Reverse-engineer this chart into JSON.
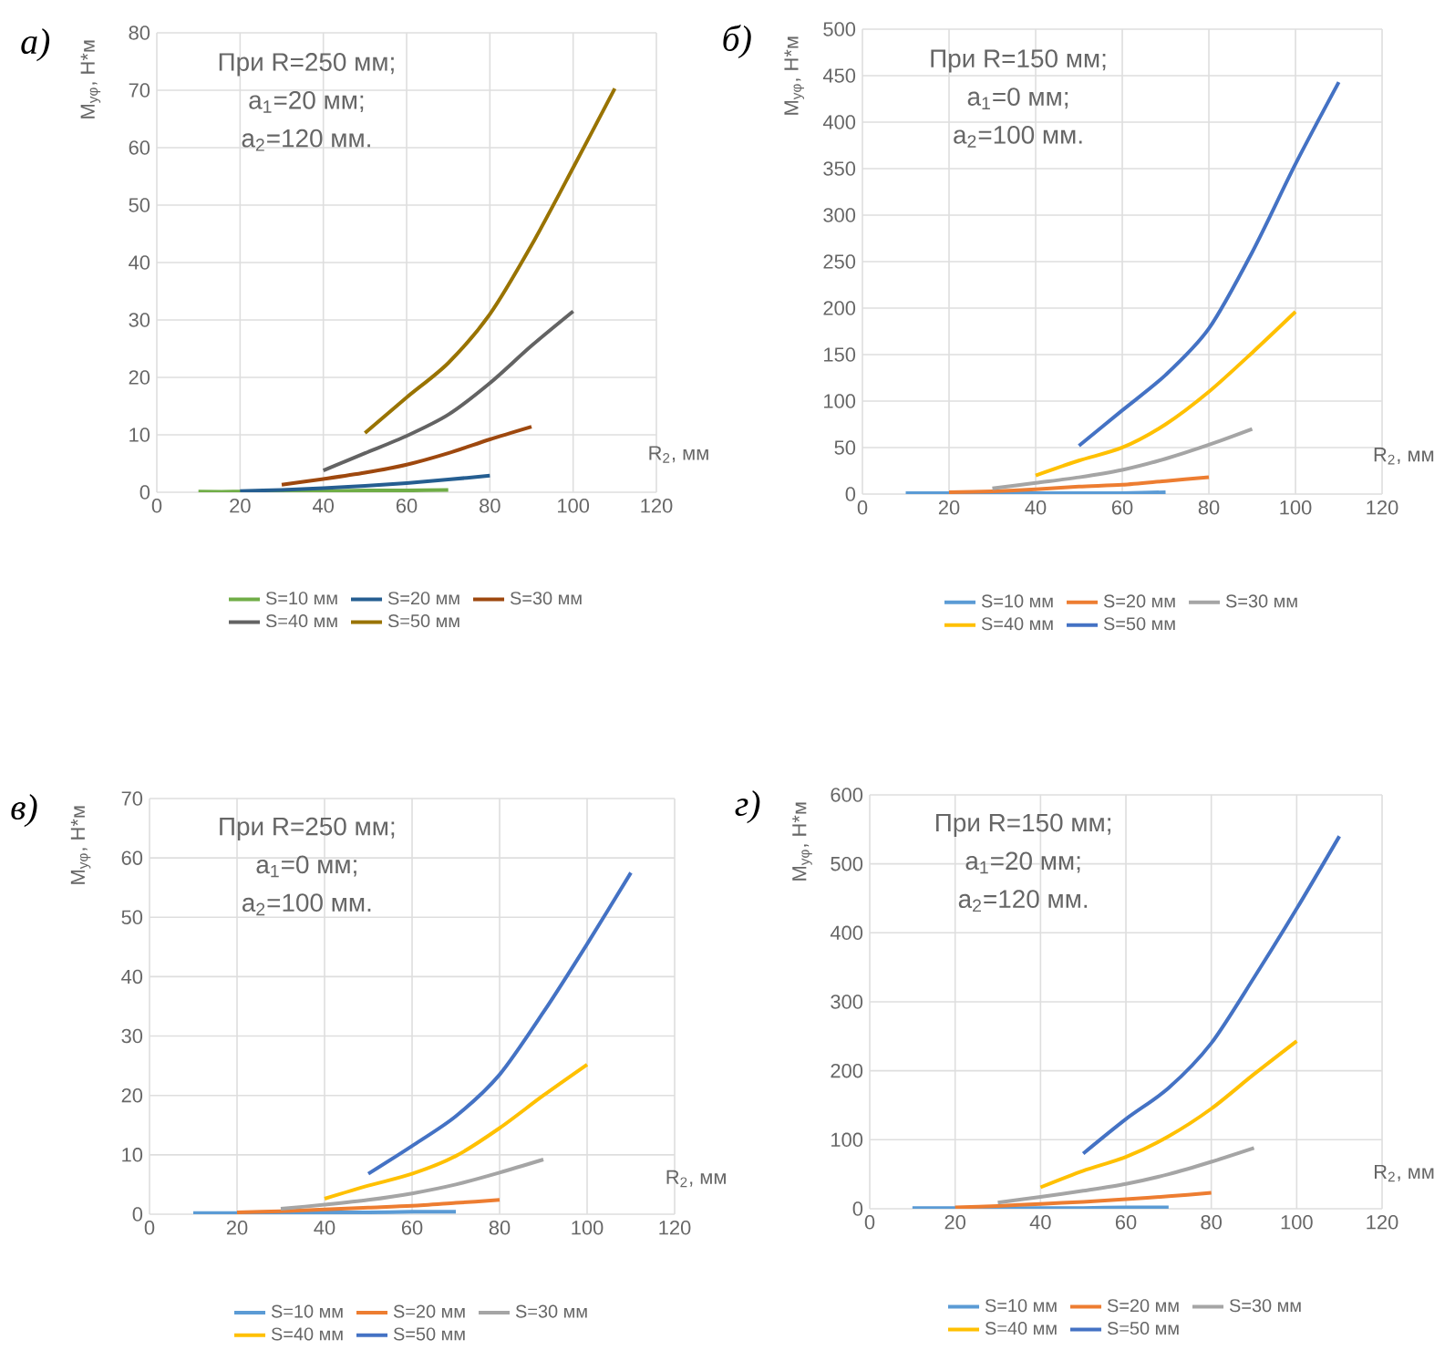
{
  "chart_data": [
    {
      "type": "line",
      "title": "а)",
      "xlabel": "R$_{2}$, мм",
      "ylabel": "M$_{yφ}$, Н*м",
      "annotations": [
        "При R=250 мм;",
        "a$_{1}$=20 мм;",
        "a$_{2}$=120 мм."
      ],
      "xlim": [
        0,
        120
      ],
      "xticks": [
        0,
        20,
        40,
        60,
        80,
        100,
        120
      ],
      "ylim": [
        0,
        80
      ],
      "yticks": [
        0,
        10,
        20,
        30,
        40,
        50,
        60,
        70,
        80
      ],
      "grid": true,
      "legend": "bottom",
      "series": [
        {
          "name": "S=10 мм",
          "color": "#70ad47",
          "x": [
            10,
            20,
            30,
            40,
            50,
            60,
            70
          ],
          "values": [
            0.1,
            0.1,
            0.2,
            0.2,
            0.3,
            0.3,
            0.4
          ]
        },
        {
          "name": "S=20 мм",
          "color": "#255e91",
          "x": [
            20,
            30,
            40,
            50,
            60,
            70,
            80
          ],
          "values": [
            0.2,
            0.4,
            0.7,
            1.1,
            1.6,
            2.2,
            2.9
          ]
        },
        {
          "name": "S=30 мм",
          "color": "#9e480e",
          "x": [
            30,
            40,
            50,
            60,
            70,
            80,
            90
          ],
          "values": [
            1.3,
            2.3,
            3.4,
            4.8,
            6.8,
            9.2,
            11.4
          ]
        },
        {
          "name": "S=40 мм",
          "color": "#636363",
          "x": [
            40,
            50,
            60,
            70,
            80,
            90,
            100
          ],
          "values": [
            3.8,
            6.8,
            9.8,
            13.5,
            19,
            25.5,
            31.5
          ]
        },
        {
          "name": "S=50 мм",
          "color": "#997300",
          "x": [
            50,
            60,
            70,
            80,
            90,
            100,
            110
          ],
          "values": [
            10.3,
            16.5,
            22.5,
            31,
            43,
            56.5,
            70.3
          ]
        }
      ]
    },
    {
      "type": "line",
      "title": "б)",
      "xlabel": "R$_{2}$, мм",
      "ylabel": "M$_{yφ}$, Н*м",
      "annotations": [
        "При R=150 мм;",
        "a$_{1}$=0 мм;",
        "a$_{2}$=100 мм."
      ],
      "xlim": [
        0,
        120
      ],
      "xticks": [
        0,
        20,
        40,
        60,
        80,
        100,
        120
      ],
      "ylim": [
        0,
        500
      ],
      "yticks": [
        0,
        50,
        100,
        150,
        200,
        250,
        300,
        350,
        400,
        450,
        500
      ],
      "grid": true,
      "legend": "bottom",
      "series": [
        {
          "name": "S=10 мм",
          "color": "#5b9bd5",
          "x": [
            10,
            20,
            30,
            40,
            50,
            60,
            70
          ],
          "values": [
            1,
            1,
            1,
            1,
            1,
            1,
            2
          ]
        },
        {
          "name": "S=20 мм",
          "color": "#ed7d31",
          "x": [
            20,
            30,
            40,
            50,
            60,
            70,
            80
          ],
          "values": [
            2,
            3,
            5,
            8,
            10,
            14,
            18
          ]
        },
        {
          "name": "S=30 мм",
          "color": "#a5a5a5",
          "x": [
            30,
            40,
            50,
            60,
            70,
            80,
            90
          ],
          "values": [
            6,
            12,
            18,
            26,
            38,
            53,
            70
          ]
        },
        {
          "name": "S=40 мм",
          "color": "#ffc000",
          "x": [
            40,
            50,
            60,
            70,
            80,
            90,
            100
          ],
          "values": [
            20,
            36,
            50,
            75,
            110,
            152,
            196
          ]
        },
        {
          "name": "S=50 мм",
          "color": "#4472c4",
          "x": [
            50,
            60,
            70,
            80,
            90,
            100,
            110
          ],
          "values": [
            52,
            90,
            128,
            178,
            260,
            355,
            443
          ]
        }
      ]
    },
    {
      "type": "line",
      "title": "в)",
      "xlabel": "R$_{2}$, мм",
      "ylabel": "M$_{yφ}$, Н*м",
      "annotations": [
        "При R=250 мм;",
        "a$_{1}$=0 мм;",
        "a$_{2}$=100 мм."
      ],
      "xlim": [
        0,
        120
      ],
      "xticks": [
        0,
        20,
        40,
        60,
        80,
        100,
        120
      ],
      "ylim": [
        0,
        70
      ],
      "yticks": [
        0,
        10,
        20,
        30,
        40,
        50,
        60,
        70
      ],
      "grid": true,
      "legend": "bottom",
      "series": [
        {
          "name": "S=10 мм",
          "color": "#5b9bd5",
          "x": [
            10,
            20,
            30,
            40,
            50,
            60,
            70
          ],
          "values": [
            0.2,
            0.2,
            0.3,
            0.3,
            0.3,
            0.4,
            0.4
          ]
        },
        {
          "name": "S=20 мм",
          "color": "#ed7d31",
          "x": [
            20,
            30,
            40,
            50,
            60,
            70,
            80
          ],
          "values": [
            0.3,
            0.5,
            0.8,
            1.1,
            1.4,
            1.9,
            2.4
          ]
        },
        {
          "name": "S=30 мм",
          "color": "#a5a5a5",
          "x": [
            30,
            40,
            50,
            60,
            70,
            80,
            90
          ],
          "values": [
            0.9,
            1.6,
            2.4,
            3.5,
            5,
            7,
            9.2
          ]
        },
        {
          "name": "S=40 мм",
          "color": "#ffc000",
          "x": [
            40,
            50,
            60,
            70,
            80,
            90,
            100
          ],
          "values": [
            2.6,
            4.8,
            6.8,
            9.8,
            14.5,
            20,
            25.2
          ]
        },
        {
          "name": "S=50 мм",
          "color": "#4472c4",
          "x": [
            50,
            60,
            70,
            80,
            90,
            100,
            110
          ],
          "values": [
            6.8,
            11.5,
            16.5,
            23.5,
            34,
            45.5,
            57.5
          ]
        }
      ]
    },
    {
      "type": "line",
      "title": "г)",
      "xlabel": "R$_{2}$, мм",
      "ylabel": "M$_{yφ}$, Н*м",
      "annotations": [
        "При R=150 мм;",
        "a$_{1}$=20 мм;",
        "a$_{2}$=120 мм."
      ],
      "xlim": [
        0,
        120
      ],
      "xticks": [
        0,
        20,
        40,
        60,
        80,
        100,
        120
      ],
      "ylim": [
        0,
        600
      ],
      "yticks": [
        0,
        100,
        200,
        300,
        400,
        500,
        600
      ],
      "grid": true,
      "legend": "bottom",
      "series": [
        {
          "name": "S=10 мм",
          "color": "#5b9bd5",
          "x": [
            10,
            20,
            30,
            40,
            50,
            60,
            70
          ],
          "values": [
            1,
            1,
            1,
            1,
            1,
            2,
            2
          ]
        },
        {
          "name": "S=20 мм",
          "color": "#ed7d31",
          "x": [
            20,
            30,
            40,
            50,
            60,
            70,
            80
          ],
          "values": [
            2,
            4,
            7,
            10,
            14,
            18,
            23
          ]
        },
        {
          "name": "S=30 мм",
          "color": "#a5a5a5",
          "x": [
            30,
            40,
            50,
            60,
            70,
            80,
            90
          ],
          "values": [
            9,
            17,
            26,
            36,
            50,
            68,
            88
          ]
        },
        {
          "name": "S=40 мм",
          "color": "#ffc000",
          "x": [
            40,
            50,
            60,
            70,
            80,
            90,
            100
          ],
          "values": [
            31,
            55,
            75,
            105,
            145,
            195,
            243
          ]
        },
        {
          "name": "S=50 мм",
          "color": "#4472c4",
          "x": [
            50,
            60,
            70,
            80,
            90,
            100,
            110
          ],
          "values": [
            80,
            130,
            175,
            240,
            335,
            435,
            540
          ]
        }
      ]
    }
  ]
}
